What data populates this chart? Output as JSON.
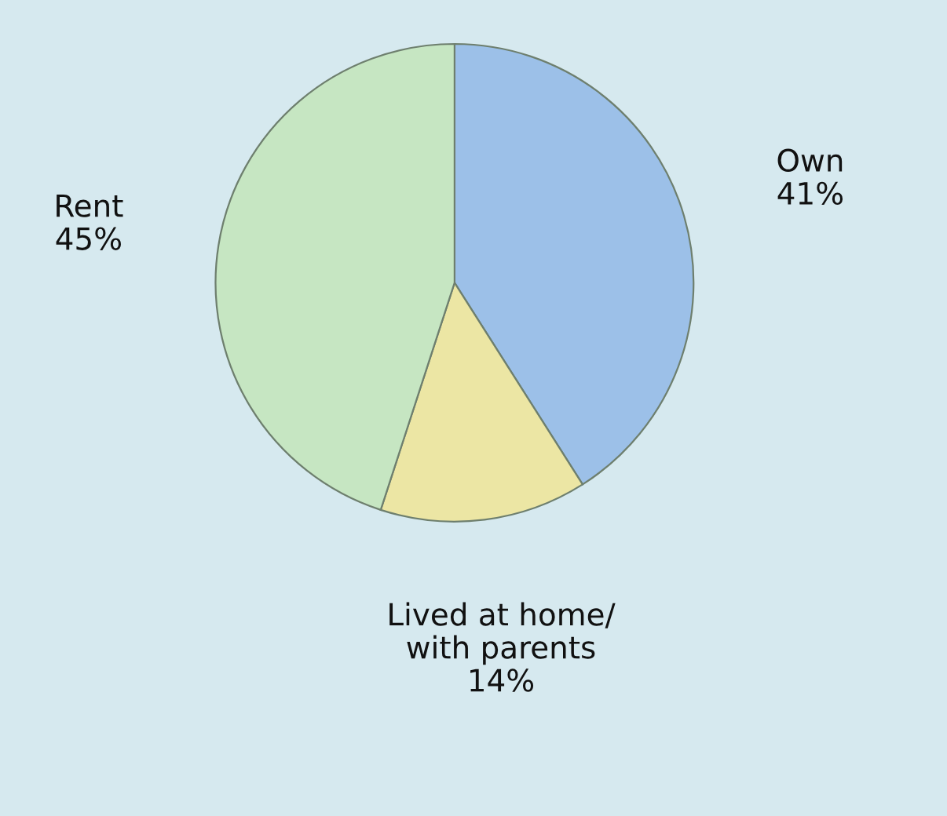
{
  "chart_data": {
    "type": "pie",
    "categories": [
      "Own",
      "Lived at home/\nwith parents",
      "Rent"
    ],
    "values": [
      41,
      14,
      45
    ],
    "value_labels": [
      "41%",
      "14%",
      "45%"
    ],
    "colors": [
      "#9cc0e8",
      "#ece6a4",
      "#c6e6c2"
    ]
  }
}
